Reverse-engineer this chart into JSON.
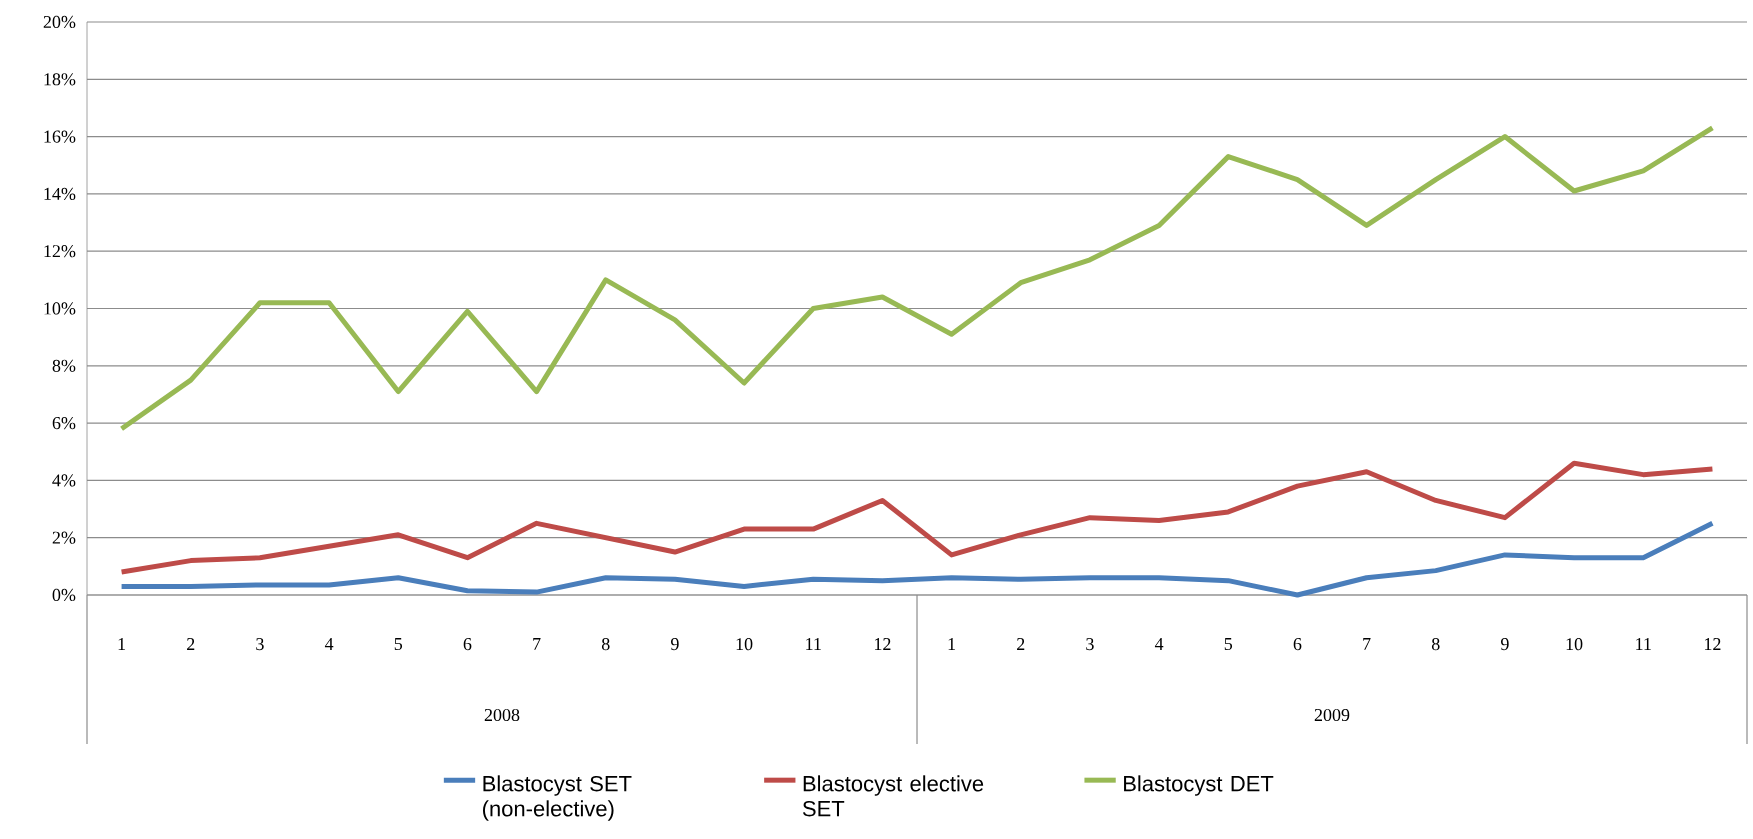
{
  "chart_data": {
    "type": "line",
    "categories": [
      "1",
      "2",
      "3",
      "4",
      "5",
      "6",
      "7",
      "8",
      "9",
      "10",
      "11",
      "12",
      "1",
      "2",
      "3",
      "4",
      "5",
      "6",
      "7",
      "8",
      "9",
      "10",
      "11",
      "12"
    ],
    "series": [
      {
        "name": "Blastocyst SET (non-elective)",
        "color": "#4a7ebb",
        "values": [
          0.3,
          0.3,
          0.35,
          0.35,
          0.6,
          0.15,
          0.1,
          0.6,
          0.55,
          0.3,
          0.55,
          0.5,
          0.6,
          0.55,
          0.6,
          0.6,
          0.5,
          0.0,
          0.6,
          0.85,
          1.4,
          1.3,
          1.3,
          2.5
        ]
      },
      {
        "name": "Blastocyst elective SET",
        "color": "#be4b48",
        "values": [
          0.8,
          1.2,
          1.3,
          1.7,
          2.1,
          1.3,
          2.5,
          2.0,
          1.5,
          2.3,
          2.3,
          3.3,
          1.4,
          2.1,
          2.7,
          2.6,
          2.9,
          3.8,
          4.3,
          3.3,
          2.7,
          4.6,
          4.2,
          4.4
        ]
      },
      {
        "name": "Blastocyst DET",
        "color": "#98b954",
        "values": [
          5.8,
          7.5,
          10.2,
          10.2,
          7.1,
          9.9,
          7.1,
          11.0,
          9.6,
          7.4,
          10.0,
          10.4,
          9.1,
          10.9,
          11.7,
          12.9,
          15.3,
          14.5,
          12.9,
          14.5,
          16.0,
          14.1,
          14.8,
          16.3
        ]
      }
    ],
    "ylim": [
      0,
      20
    ],
    "yticks": [
      {
        "value": 0,
        "label": "0%"
      },
      {
        "value": 2,
        "label": "2%"
      },
      {
        "value": 4,
        "label": "4%"
      },
      {
        "value": 6,
        "label": "6%"
      },
      {
        "value": 8,
        "label": "8%"
      },
      {
        "value": 10,
        "label": "10%"
      },
      {
        "value": 12,
        "label": "12%"
      },
      {
        "value": 14,
        "label": "14%"
      },
      {
        "value": 16,
        "label": "16%"
      },
      {
        "value": 18,
        "label": "18%"
      },
      {
        "value": 20,
        "label": "20%"
      }
    ],
    "annotations": [
      "2008",
      "2009"
    ],
    "grid": "y",
    "legend": "bottom",
    "marker": "none",
    "line_style": "solid"
  }
}
